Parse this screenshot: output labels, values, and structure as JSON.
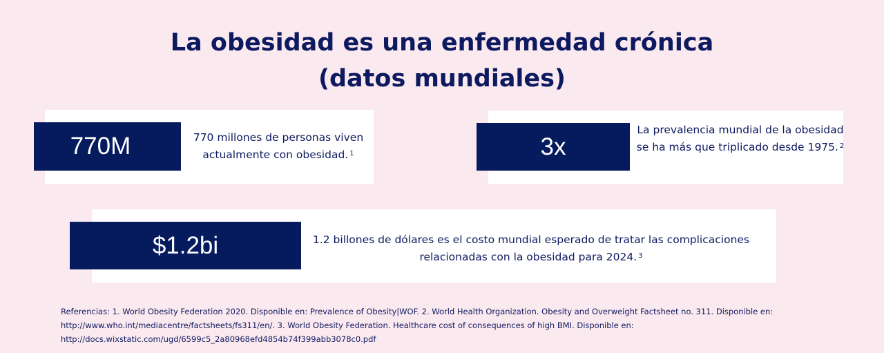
{
  "title": {
    "line1": "La obesidad es una enfermedad crónica",
    "line2": "(datos mundiales)"
  },
  "cards": [
    {
      "stat": "770M",
      "text": "770 millones de personas viven actualmente con obesidad.",
      "ref": "1"
    },
    {
      "stat": "3x",
      "text": "La prevalencia mundial de la obesidad se ha más que triplicado desde 1975.",
      "ref": "2"
    },
    {
      "stat": "$1.2bi",
      "text": "1.2 billones de dólares es el costo mundial esperado de tratar las complicaciones relacionadas con la obesidad para 2024.",
      "ref": "3"
    }
  ],
  "references": "Referencias: 1. World Obesity Federation 2020. Disponible en: Prevalence of Obesity|WOF. 2. World Health Organization. Obesity and Overweight Factsheet no. 311. Disponible en: http://www.who.int/mediacentre/factsheets/fs311/en/. 3. World Obesity Federation. Healthcare cost of consequences of high BMI. Disponible en: http://docs.wixstatic.com/ugd/6599c5_2a80968efd4854b74f399abb3078c0.pdf",
  "colors": {
    "background": "#fbe9f0",
    "navy": "#061a5e",
    "text": "#0e1a5f",
    "card": "#ffffff"
  }
}
